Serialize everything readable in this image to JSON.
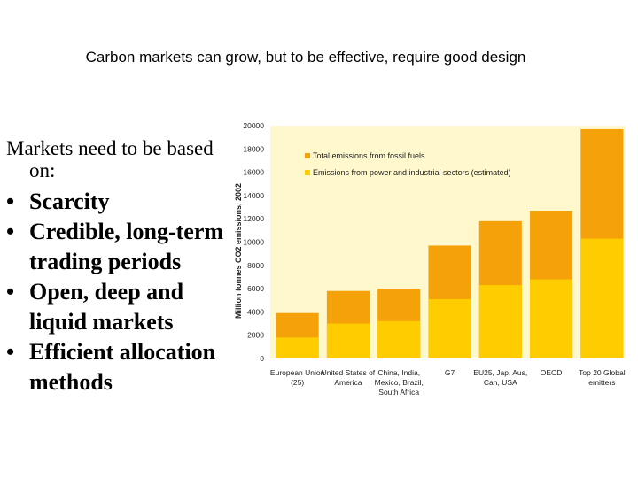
{
  "slide": {
    "title": "Carbon markets can grow, but to be effective, require good design",
    "intro_line1": "Markets need to be based",
    "intro_line2": "on:",
    "bullet_char": "•",
    "bullets": [
      [
        "Scarcity"
      ],
      [
        "Credible, long-term",
        "trading periods"
      ],
      [
        "Open, deep and",
        "liquid markets"
      ],
      [
        "Efficient allocation",
        "methods"
      ]
    ]
  },
  "chart_data": {
    "type": "bar",
    "title": "",
    "ylabel": "Million tonnes CO2 emissions, 2002",
    "ylim": [
      0,
      20000
    ],
    "yticks": [
      0,
      2000,
      4000,
      6000,
      8000,
      10000,
      12000,
      14000,
      16000,
      18000,
      20000
    ],
    "categories": [
      [
        "European Union",
        "(25)"
      ],
      [
        "United States of",
        "America"
      ],
      [
        "China, India,",
        "Mexico, Brazil,",
        "South Africa"
      ],
      [
        "G7"
      ],
      [
        "EU25, Jap, Aus,",
        "Can, USA"
      ],
      [
        "OECD"
      ],
      [
        "Top 20 Global",
        "emitters"
      ]
    ],
    "series": [
      {
        "name": "Total emissions from fossil fuels",
        "color": "#f5a20a",
        "values": [
          3900,
          5800,
          6000,
          9700,
          11800,
          12700,
          19700
        ]
      },
      {
        "name": "Emissions from power and industrial sectors (estimated)",
        "color": "#ffcc00",
        "values": [
          1800,
          3000,
          3200,
          5100,
          6300,
          6800,
          10300
        ]
      }
    ],
    "background": "#fff8cc"
  }
}
